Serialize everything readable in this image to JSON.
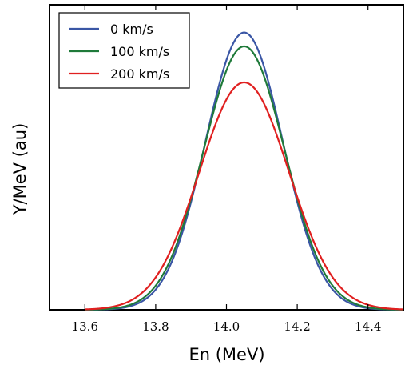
{
  "chart_data": {
    "type": "line",
    "xlabel": "En (MeV)",
    "ylabel": "Y/MeV (au)",
    "xlim": [
      13.5,
      14.5
    ],
    "ylim": [
      0,
      1.1
    ],
    "xticks": [
      "13.6",
      "13.8",
      "14.0",
      "14.2",
      "14.4"
    ],
    "yticks": [],
    "grid": false,
    "legend_position": "top-left",
    "series": [
      {
        "name": "0 km/s",
        "color": "#3a56a5",
        "x": [
          13.6,
          13.65,
          13.7,
          13.75,
          13.8,
          13.85,
          13.9,
          13.95,
          14.0,
          14.05,
          14.1,
          14.15,
          14.2,
          14.25,
          14.3,
          14.35,
          14.4,
          14.45,
          14.5
        ],
        "values": [
          0.0,
          0.001,
          0.004,
          0.02,
          0.073,
          0.216,
          0.478,
          0.793,
          0.985,
          1.0,
          0.985,
          0.793,
          0.478,
          0.216,
          0.073,
          0.02,
          0.004,
          0.001,
          0.0
        ]
      },
      {
        "name": "100 km/s",
        "color": "#1f7a3a",
        "x": [
          13.6,
          13.65,
          13.7,
          13.75,
          13.8,
          13.85,
          13.9,
          13.95,
          14.0,
          14.05,
          14.1,
          14.15,
          14.2,
          14.25,
          14.3,
          14.35,
          14.4,
          14.45,
          14.5
        ],
        "values": [
          0.0,
          0.001,
          0.005,
          0.025,
          0.087,
          0.234,
          0.488,
          0.776,
          0.939,
          0.95,
          0.939,
          0.776,
          0.488,
          0.234,
          0.087,
          0.025,
          0.005,
          0.001,
          0.0
        ]
      },
      {
        "name": "200 km/s",
        "color": "#e02020",
        "x": [
          13.6,
          13.65,
          13.7,
          13.75,
          13.8,
          13.85,
          13.9,
          13.95,
          14.0,
          14.05,
          14.1,
          14.15,
          14.2,
          14.25,
          14.3,
          14.35,
          14.4,
          14.45,
          14.5
        ],
        "values": [
          0.001,
          0.003,
          0.013,
          0.043,
          0.117,
          0.255,
          0.447,
          0.634,
          0.768,
          0.82,
          0.768,
          0.634,
          0.447,
          0.255,
          0.117,
          0.043,
          0.013,
          0.003,
          0.001
        ]
      }
    ]
  }
}
